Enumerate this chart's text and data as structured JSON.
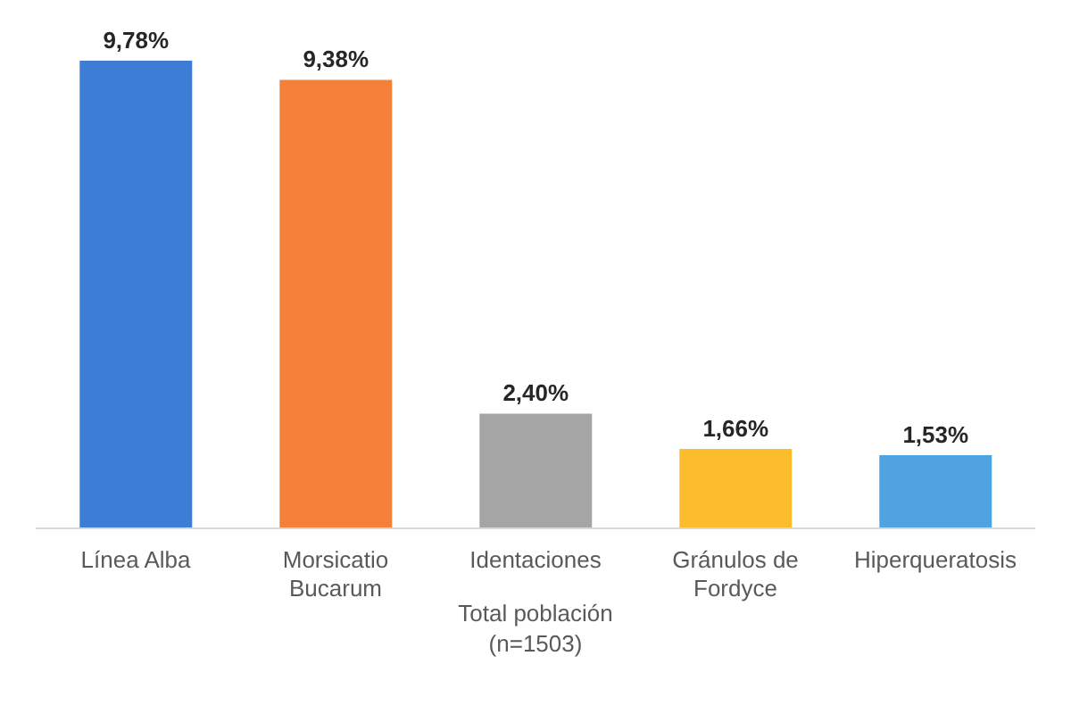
{
  "chart_data": {
    "type": "bar",
    "categories": [
      "Línea Alba",
      "Morsicatio Bucarum",
      "Identaciones",
      "Gránulos de Fordyce",
      "Hiperqueratosis"
    ],
    "values": [
      9.78,
      9.38,
      2.4,
      1.66,
      1.53
    ],
    "value_labels": [
      "9,78%",
      "9,38%",
      "2,40%",
      "1,66%",
      "1,53%"
    ],
    "colors": [
      "#3d7dd6",
      "#f5803a",
      "#a5a5a5",
      "#fbbd2c",
      "#4fa3e0"
    ],
    "xlabel": "Total población (n=1503)"
  }
}
